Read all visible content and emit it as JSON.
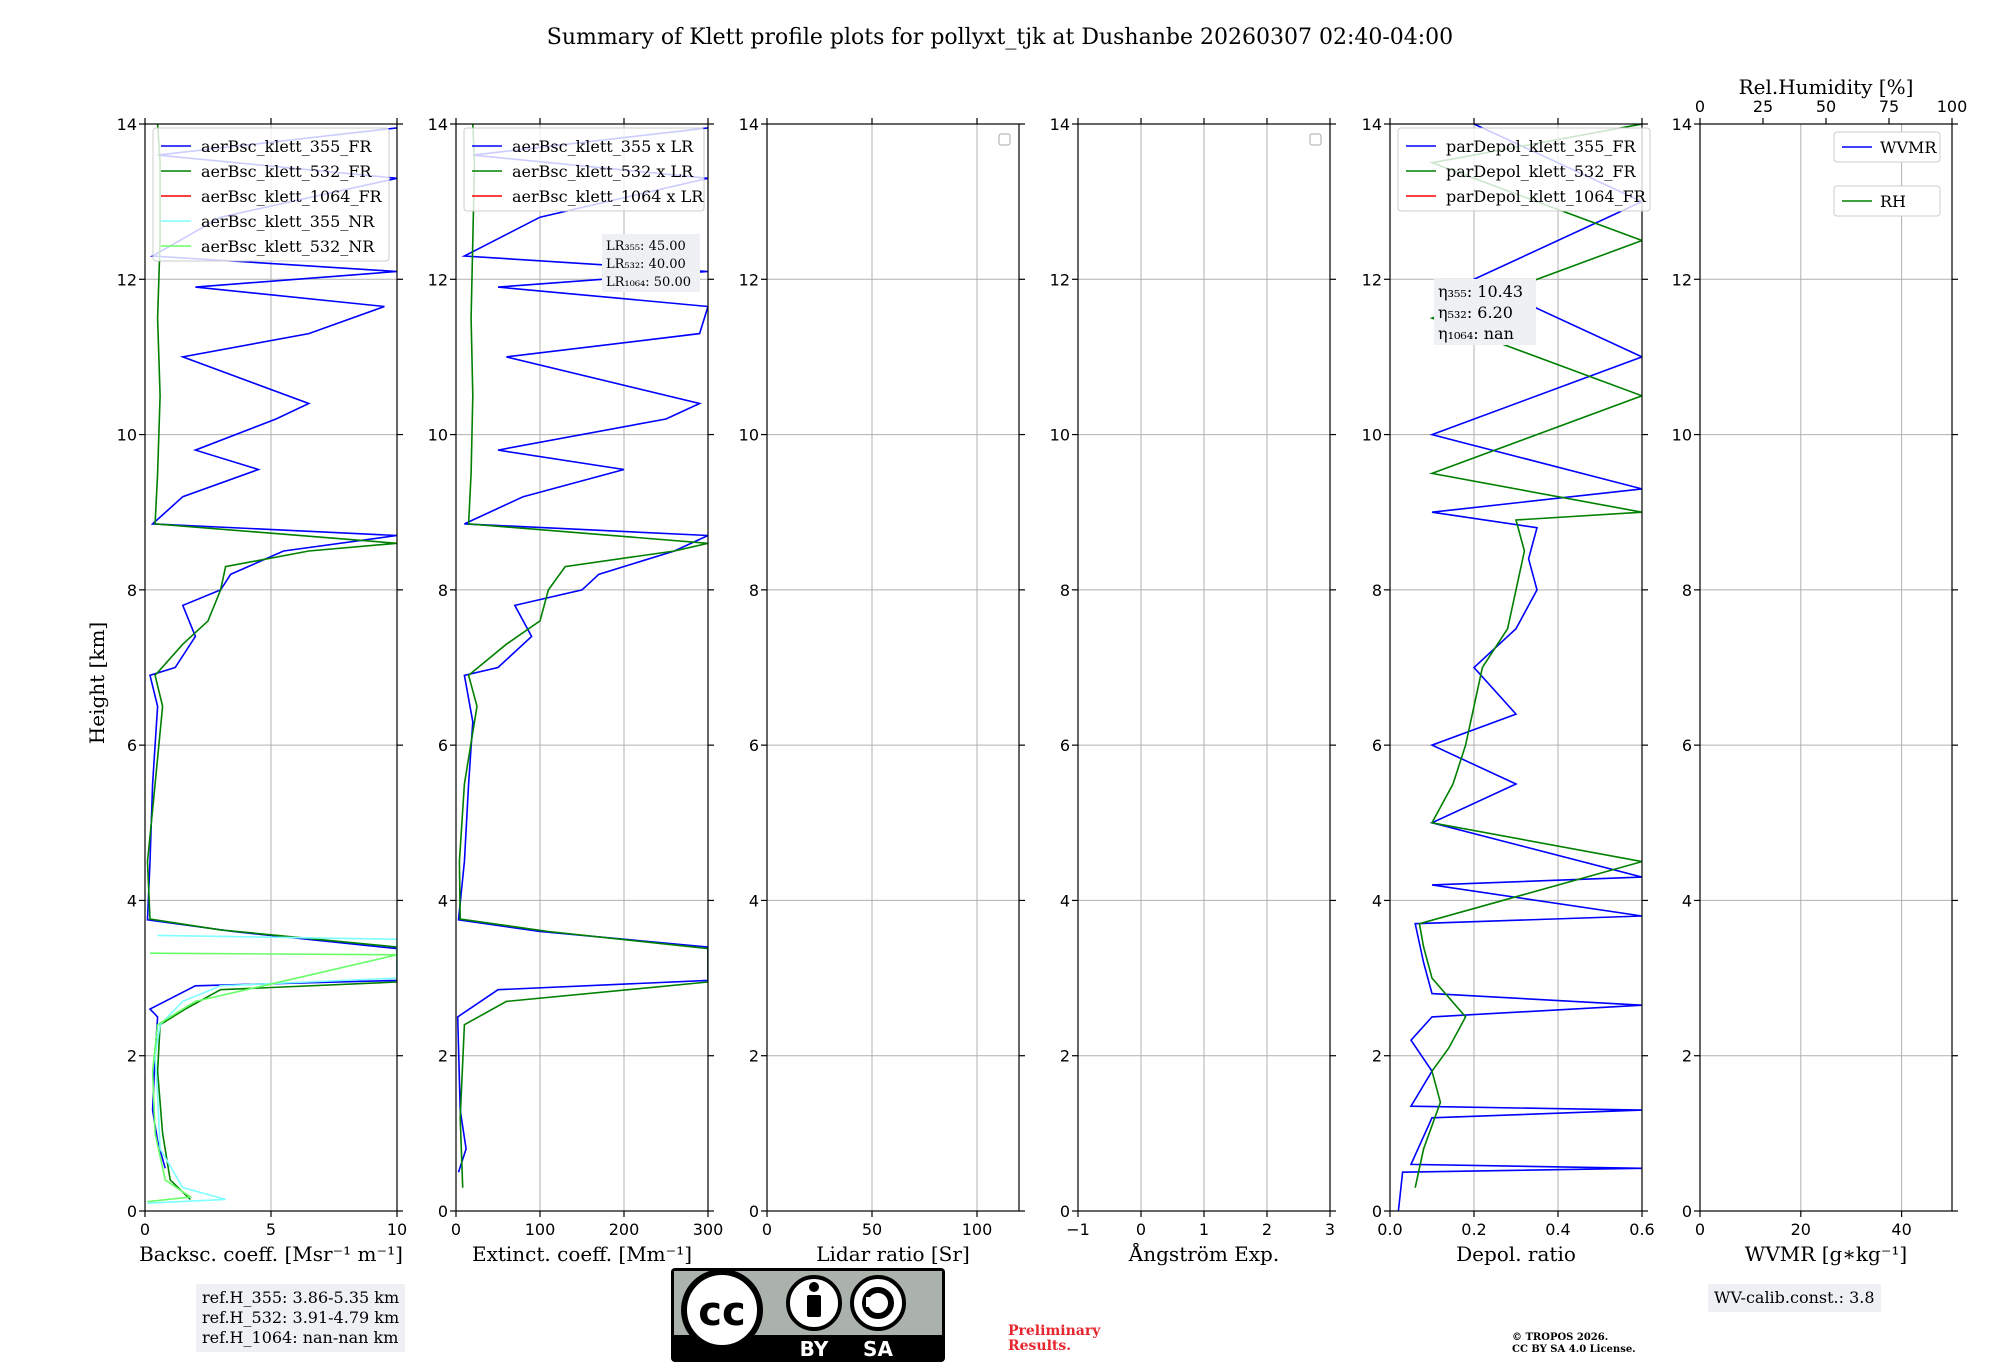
{
  "title": "Summary of Klett profile plots for pollyxt_tjk at Dushanbe 20260307 02:40-04:00",
  "ylabel": "Height [km]",
  "notes": {
    "ref_355": "ref.H_355: 3.86-5.35 km",
    "ref_532": "ref.H_532: 3.91-4.79 km",
    "ref_1064": "ref.H_1064: nan-nan km",
    "wv_calib": "WV-calib.const.: 3.8",
    "preliminary_1": "Preliminary",
    "preliminary_2": "Results.",
    "copyright_1": "© TROPOS 2026.",
    "copyright_2": "CC BY SA 4.0 License.",
    "cc_by": "BY",
    "cc_sa": "SA"
  },
  "colors": {
    "blue": "#0000ff",
    "green": "#008000",
    "red": "#ff0000",
    "cyan": "#7fffff",
    "lightgreen": "#66ff66",
    "grid": "#b0b0b0"
  },
  "chart_data": [
    {
      "type": "line",
      "xlabel": "Backsc. coeff. [Msr⁻¹ m⁻¹]",
      "xlim": [
        0,
        10
      ],
      "xticks": [
        0,
        5,
        10
      ],
      "ylim": [
        0,
        14
      ],
      "yticks": [
        0,
        2,
        4,
        6,
        8,
        10,
        12,
        14
      ],
      "legend": [
        "aerBsc_klett_355_FR",
        "aerBsc_klett_532_FR",
        "aerBsc_klett_1064_FR",
        "aerBsc_klett_355_NR",
        "aerBsc_klett_532_NR"
      ],
      "legend_colors": [
        "#0000ff",
        "#008000",
        "#ff0000",
        "#7fffff",
        "#66ff66"
      ],
      "series": [
        {
          "name": "aerBsc_klett_355_FR",
          "color": "#0000ff",
          "points": [
            [
              0.8,
              0.55
            ],
            [
              0.5,
              0.9
            ],
            [
              0.3,
              1.3
            ],
            [
              0.4,
              2.0
            ],
            [
              0.5,
              2.5
            ],
            [
              0.2,
              2.6
            ],
            [
              2.0,
              2.9
            ],
            [
              10,
              2.97
            ],
            [
              10,
              3.38
            ],
            [
              3.5,
              3.6
            ],
            [
              0.1,
              3.75
            ],
            [
              0.2,
              4.5
            ],
            [
              0.3,
              5.5
            ],
            [
              0.5,
              6.5
            ],
            [
              0.2,
              6.9
            ],
            [
              1.2,
              7.0
            ],
            [
              2.0,
              7.4
            ],
            [
              1.5,
              7.8
            ],
            [
              3.0,
              8.0
            ],
            [
              3.4,
              8.2
            ],
            [
              5.5,
              8.5
            ],
            [
              10,
              8.7
            ],
            [
              0.3,
              8.85
            ],
            [
              1.5,
              9.2
            ],
            [
              4.5,
              9.55
            ],
            [
              2.0,
              9.8
            ],
            [
              5.2,
              10.2
            ],
            [
              6.5,
              10.4
            ],
            [
              1.5,
              11.0
            ],
            [
              6.5,
              11.3
            ],
            [
              9.5,
              11.65
            ],
            [
              2.0,
              11.9
            ],
            [
              10,
              12.1
            ],
            [
              0.3,
              12.3
            ],
            [
              3,
              12.8
            ],
            [
              10,
              13.3
            ],
            [
              0.5,
              13.6
            ],
            [
              10,
              13.95
            ]
          ]
        },
        {
          "name": "aerBsc_klett_532_FR",
          "color": "#008000",
          "points": [
            [
              1.8,
              0.15
            ],
            [
              1.0,
              0.4
            ],
            [
              0.7,
              1.0
            ],
            [
              0.5,
              1.8
            ],
            [
              0.6,
              2.4
            ],
            [
              1.6,
              2.6
            ],
            [
              3.0,
              2.85
            ],
            [
              10,
              2.95
            ],
            [
              10,
              3.4
            ],
            [
              3.0,
              3.62
            ],
            [
              0.2,
              3.76
            ],
            [
              0.1,
              4.5
            ],
            [
              0.4,
              5.5
            ],
            [
              0.7,
              6.5
            ],
            [
              0.4,
              6.9
            ],
            [
              1.5,
              7.3
            ],
            [
              2.5,
              7.6
            ],
            [
              3.0,
              8.0
            ],
            [
              3.2,
              8.3
            ],
            [
              6.5,
              8.5
            ],
            [
              10,
              8.6
            ],
            [
              0.4,
              8.85
            ],
            [
              0.5,
              9.5
            ],
            [
              0.6,
              10.5
            ],
            [
              0.5,
              11.5
            ],
            [
              0.6,
              12.5
            ],
            [
              0.6,
              13.5
            ],
            [
              0.5,
              14
            ]
          ]
        },
        {
          "name": "aerBsc_klett_355_NR",
          "color": "#7fffff",
          "points": [
            [
              0.1,
              0.1
            ],
            [
              3.2,
              0.15
            ],
            [
              1.5,
              0.3
            ],
            [
              0.6,
              0.8
            ],
            [
              0.5,
              1.5
            ],
            [
              0.4,
              2.0
            ],
            [
              0.6,
              2.4
            ],
            [
              1.5,
              2.7
            ],
            [
              3.0,
              2.9
            ],
            [
              10,
              3.0
            ],
            [
              10,
              3.5
            ],
            [
              0.5,
              3.55
            ]
          ]
        },
        {
          "name": "aerBsc_klett_532_NR",
          "color": "#66ff66",
          "points": [
            [
              0.1,
              0.12
            ],
            [
              1.8,
              0.18
            ],
            [
              0.8,
              0.4
            ],
            [
              0.4,
              1.0
            ],
            [
              0.3,
              1.8
            ],
            [
              0.5,
              2.4
            ],
            [
              2.0,
              2.7
            ],
            [
              4.7,
              2.9
            ],
            [
              10,
              3.3
            ],
            [
              0.2,
              3.32
            ]
          ]
        }
      ]
    },
    {
      "type": "line",
      "xlabel": "Extinct. coeff. [Mm⁻¹]",
      "xlim": [
        0,
        300
      ],
      "xticks": [
        0,
        100,
        200,
        300
      ],
      "ylim": [
        0,
        14
      ],
      "yticks": [
        0,
        2,
        4,
        6,
        8,
        10,
        12,
        14
      ],
      "legend": [
        "aerBsc_klett_355 x LR",
        "aerBsc_klett_532 x LR",
        "aerBsc_klett_1064 x LR"
      ],
      "legend_colors": [
        "#0000ff",
        "#008000",
        "#ff0000"
      ],
      "lidar_ratios": [
        "LR₃₅₅: 45.00",
        "LR₅₃₂: 40.00",
        "LR₁₀₆₄: 50.00"
      ],
      "series": [
        {
          "name": "aerBsc_klett_355 x LR",
          "color": "#0000ff",
          "points": [
            [
              3,
              0.5
            ],
            [
              12,
              0.8
            ],
            [
              5,
              1.3
            ],
            [
              2,
              2.5
            ],
            [
              50,
              2.85
            ],
            [
              300,
              2.97
            ],
            [
              300,
              3.4
            ],
            [
              100,
              3.6
            ],
            [
              3,
              3.75
            ],
            [
              10,
              4.5
            ],
            [
              15,
              5.5
            ],
            [
              20,
              6.3
            ],
            [
              10,
              6.9
            ],
            [
              50,
              7.0
            ],
            [
              90,
              7.4
            ],
            [
              70,
              7.8
            ],
            [
              150,
              8.0
            ],
            [
              170,
              8.2
            ],
            [
              260,
              8.5
            ],
            [
              300,
              8.7
            ],
            [
              10,
              8.85
            ],
            [
              80,
              9.2
            ],
            [
              200,
              9.55
            ],
            [
              50,
              9.8
            ],
            [
              250,
              10.2
            ],
            [
              290,
              10.4
            ],
            [
              60,
              11.0
            ],
            [
              290,
              11.3
            ],
            [
              300,
              11.65
            ],
            [
              50,
              11.9
            ],
            [
              300,
              12.1
            ],
            [
              10,
              12.3
            ],
            [
              100,
              12.8
            ],
            [
              300,
              13.3
            ],
            [
              20,
              13.6
            ],
            [
              300,
              13.95
            ]
          ]
        },
        {
          "name": "aerBsc_klett_532 x LR",
          "color": "#008000",
          "points": [
            [
              8,
              0.3
            ],
            [
              5,
              1.2
            ],
            [
              10,
              2.4
            ],
            [
              60,
              2.7
            ],
            [
              300,
              2.95
            ],
            [
              300,
              3.38
            ],
            [
              110,
              3.6
            ],
            [
              5,
              3.76
            ],
            [
              4,
              4.5
            ],
            [
              10,
              5.5
            ],
            [
              25,
              6.5
            ],
            [
              15,
              6.9
            ],
            [
              60,
              7.3
            ],
            [
              100,
              7.6
            ],
            [
              110,
              8.0
            ],
            [
              130,
              8.3
            ],
            [
              260,
              8.5
            ],
            [
              300,
              8.6
            ],
            [
              15,
              8.85
            ],
            [
              18,
              9.5
            ],
            [
              20,
              10.5
            ],
            [
              18,
              11.5
            ],
            [
              20,
              12.5
            ],
            [
              22,
              13.5
            ],
            [
              20,
              14
            ]
          ]
        }
      ]
    },
    {
      "type": "line",
      "xlabel": "Lidar ratio [Sr]",
      "xlim": [
        0,
        120
      ],
      "xticks": [
        0,
        50,
        100
      ],
      "ylim": [
        0,
        14
      ],
      "yticks": [
        0,
        2,
        4,
        6,
        8,
        10,
        12,
        14
      ],
      "series": []
    },
    {
      "type": "line",
      "xlabel": "Ångström Exp.",
      "xlim": [
        -1,
        3
      ],
      "xticks": [
        -1,
        0,
        1,
        2,
        3
      ],
      "ylim": [
        0,
        14
      ],
      "yticks": [
        0,
        2,
        4,
        6,
        8,
        10,
        12,
        14
      ],
      "series": []
    },
    {
      "type": "line",
      "xlabel": "Depol. ratio",
      "xlim": [
        0,
        0.6
      ],
      "xticks": [
        0.0,
        0.2,
        0.4,
        0.6
      ],
      "ylim": [
        0,
        14
      ],
      "yticks": [
        0,
        2,
        4,
        6,
        8,
        10,
        12,
        14
      ],
      "legend": [
        "parDepol_klett_355_FR",
        "parDepol_klett_532_FR",
        "parDepol_klett_1064_FR"
      ],
      "legend_colors": [
        "#0000ff",
        "#008000",
        "#ff0000"
      ],
      "eta": [
        "η₃₅₅: 10.43",
        "η₅₃₂: 6.20",
        "η₁₀₆₄: nan"
      ],
      "series": [
        {
          "name": "parDepol_klett_355_FR",
          "color": "#0000ff",
          "points": [
            [
              0.02,
              0.0
            ],
            [
              0.03,
              0.5
            ],
            [
              0.6,
              0.55
            ],
            [
              0.05,
              0.6
            ],
            [
              0.1,
              1.2
            ],
            [
              0.6,
              1.3
            ],
            [
              0.05,
              1.35
            ],
            [
              0.1,
              1.8
            ],
            [
              0.05,
              2.2
            ],
            [
              0.1,
              2.5
            ],
            [
              0.6,
              2.65
            ],
            [
              0.1,
              2.8
            ],
            [
              0.08,
              3.2
            ],
            [
              0.06,
              3.7
            ],
            [
              0.6,
              3.8
            ],
            [
              0.1,
              4.2
            ],
            [
              0.6,
              4.3
            ],
            [
              0.1,
              5.0
            ],
            [
              0.3,
              5.5
            ],
            [
              0.1,
              6.0
            ],
            [
              0.3,
              6.4
            ],
            [
              0.2,
              7.0
            ],
            [
              0.3,
              7.5
            ],
            [
              0.35,
              8.0
            ],
            [
              0.33,
              8.4
            ],
            [
              0.35,
              8.8
            ],
            [
              0.1,
              9.0
            ],
            [
              0.6,
              9.3
            ],
            [
              0.1,
              10.0
            ],
            [
              0.6,
              11.0
            ],
            [
              0.2,
              12.0
            ],
            [
              0.6,
              13.0
            ],
            [
              0.2,
              14
            ]
          ]
        },
        {
          "name": "parDepol_klett_532_FR",
          "color": "#008000",
          "points": [
            [
              0.06,
              0.3
            ],
            [
              0.08,
              0.8
            ],
            [
              0.12,
              1.4
            ],
            [
              0.1,
              1.8
            ],
            [
              0.14,
              2.1
            ],
            [
              0.18,
              2.5
            ],
            [
              0.1,
              3.0
            ],
            [
              0.08,
              3.4
            ],
            [
              0.07,
              3.7
            ],
            [
              0.6,
              4.5
            ],
            [
              0.1,
              5.0
            ],
            [
              0.15,
              5.5
            ],
            [
              0.18,
              6.0
            ],
            [
              0.2,
              6.5
            ],
            [
              0.22,
              7.0
            ],
            [
              0.28,
              7.5
            ],
            [
              0.3,
              8.0
            ],
            [
              0.32,
              8.5
            ],
            [
              0.3,
              8.9
            ],
            [
              0.6,
              9.0
            ],
            [
              0.1,
              9.5
            ],
            [
              0.6,
              10.5
            ],
            [
              0.1,
              11.5
            ],
            [
              0.6,
              12.5
            ],
            [
              0.1,
              13.5
            ],
            [
              0.6,
              14
            ]
          ]
        }
      ]
    },
    {
      "type": "line",
      "xlabel": "WVMR [g∗kg⁻¹]",
      "xlim": [
        0,
        50
      ],
      "xticks": [
        0,
        20,
        40
      ],
      "top_xlabel": "Rel.Humidity [%]",
      "top_xlim": [
        0,
        100
      ],
      "top_xticks": [
        0,
        25,
        50,
        75,
        100
      ],
      "ylim": [
        0,
        14
      ],
      "yticks": [
        0,
        2,
        4,
        6,
        8,
        10,
        12,
        14
      ],
      "legend": [
        "WVMR",
        "RH"
      ],
      "legend_colors": [
        "#0000ff",
        "#008000"
      ],
      "series": []
    }
  ]
}
